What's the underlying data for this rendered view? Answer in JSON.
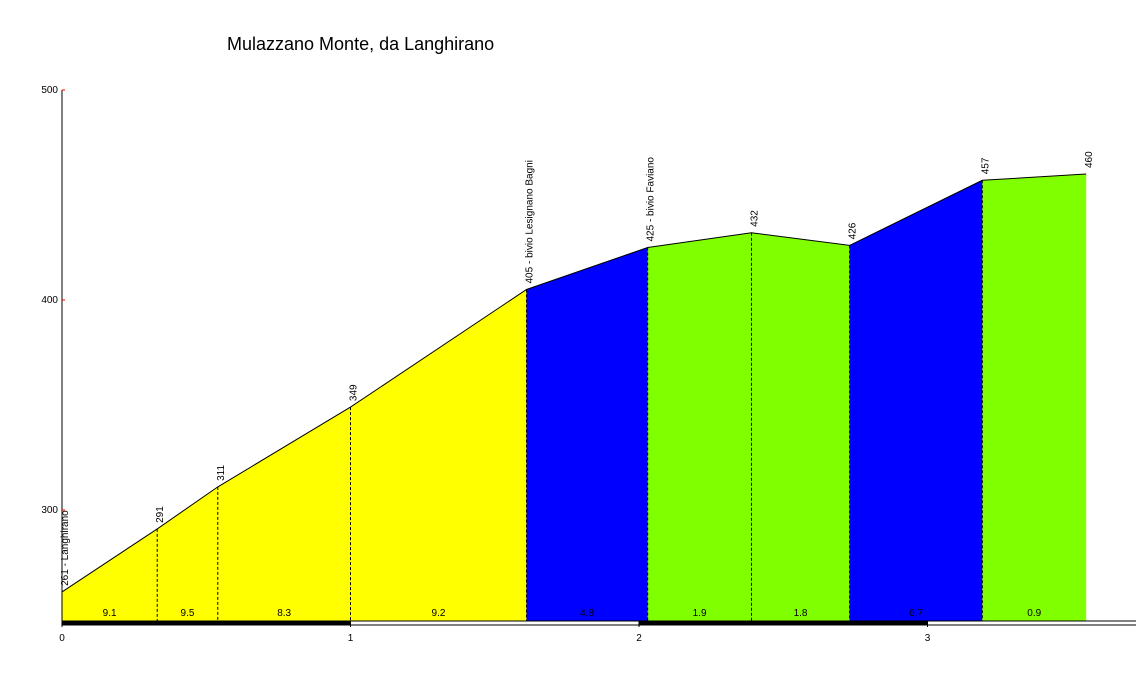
{
  "chart_data": {
    "type": "area",
    "title": "Mulazzano Monte, da Langhirano",
    "xlabel": "",
    "ylabel": "",
    "xlim": [
      0,
      3.75
    ],
    "ylim": [
      250,
      500
    ],
    "y_ticks": [
      300,
      400,
      500
    ],
    "x_ticks": [
      0,
      1,
      2,
      3
    ],
    "colors": {
      "yellow": "#ffff00",
      "blue": "#0000ff",
      "green": "#80ff00",
      "axis": "#000000"
    },
    "profile_points": [
      {
        "km": 0.0,
        "alt": 261,
        "label": "261 - Langhirano"
      },
      {
        "km": 0.33,
        "alt": 291,
        "label": "291"
      },
      {
        "km": 0.54,
        "alt": 311,
        "label": "311"
      },
      {
        "km": 1.0,
        "alt": 349,
        "label": "349"
      },
      {
        "km": 1.61,
        "alt": 405,
        "label": "405 - bivio Lesignano Bagni"
      },
      {
        "km": 2.03,
        "alt": 425,
        "label": "425 - bivio Faviano"
      },
      {
        "km": 2.39,
        "alt": 432,
        "label": "432"
      },
      {
        "km": 2.73,
        "alt": 426,
        "label": "426"
      },
      {
        "km": 3.19,
        "alt": 457,
        "label": "457"
      },
      {
        "km": 3.55,
        "alt": 460,
        "label": "460"
      }
    ],
    "segments": [
      {
        "from": 0.0,
        "to": 0.33,
        "gradient": "9.1",
        "color": "yellow"
      },
      {
        "from": 0.33,
        "to": 0.54,
        "gradient": "9.5",
        "color": "yellow"
      },
      {
        "from": 0.54,
        "to": 1.0,
        "gradient": "8.3",
        "color": "yellow"
      },
      {
        "from": 1.0,
        "to": 1.61,
        "gradient": "9.2",
        "color": "yellow"
      },
      {
        "from": 1.61,
        "to": 2.03,
        "gradient": "4.8",
        "color": "blue"
      },
      {
        "from": 2.03,
        "to": 2.39,
        "gradient": "1.9",
        "color": "green"
      },
      {
        "from": 2.39,
        "to": 2.73,
        "gradient": "1.8",
        "color": "green"
      },
      {
        "from": 2.73,
        "to": 3.19,
        "gradient": "6.7",
        "color": "blue"
      },
      {
        "from": 3.19,
        "to": 3.55,
        "gradient": "0.9",
        "color": "green"
      }
    ]
  }
}
